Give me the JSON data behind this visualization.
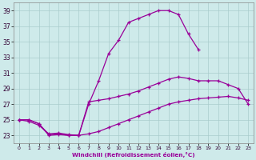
{
  "xlabel": "Windchill (Refroidissement éolien,°C)",
  "bg_color": "#ceeaea",
  "line_color": "#990099",
  "xlim": [
    -0.5,
    23.5
  ],
  "ylim": [
    22.0,
    40.0
  ],
  "xticks": [
    0,
    1,
    2,
    3,
    4,
    5,
    6,
    7,
    8,
    9,
    10,
    11,
    12,
    13,
    14,
    15,
    16,
    17,
    18,
    19,
    20,
    21,
    22,
    23
  ],
  "yticks": [
    23,
    25,
    27,
    29,
    31,
    33,
    35,
    37,
    39
  ],
  "line1_x": [
    0,
    1,
    2,
    3,
    4,
    5,
    6,
    7,
    8,
    9,
    10,
    11,
    12,
    13,
    14,
    15,
    16,
    17,
    18
  ],
  "line1_y": [
    25.0,
    25.0,
    24.5,
    23.1,
    23.2,
    23.0,
    23.0,
    27.0,
    30.0,
    33.5,
    35.2,
    37.5,
    38.0,
    38.5,
    39.0,
    39.0,
    38.5,
    36.0,
    34.0
  ],
  "line2_x": [
    0,
    1,
    2,
    3,
    4,
    5,
    6,
    7,
    8,
    9,
    10,
    11,
    12,
    13,
    14,
    15,
    16,
    17,
    18,
    19,
    20,
    21,
    22,
    23
  ],
  "line2_y": [
    25.0,
    24.8,
    24.3,
    23.2,
    23.3,
    23.1,
    23.0,
    27.3,
    27.5,
    27.7,
    28.0,
    28.3,
    28.7,
    29.2,
    29.7,
    30.2,
    30.5,
    30.3,
    30.0,
    30.0,
    30.0,
    29.5,
    29.0,
    27.0
  ],
  "line3_x": [
    0,
    1,
    2,
    3,
    4,
    5,
    6,
    7,
    8,
    9,
    10,
    11,
    12,
    13,
    14,
    15,
    16,
    17,
    18,
    19,
    20,
    21,
    22,
    23
  ],
  "line3_y": [
    25.0,
    25.0,
    24.5,
    23.0,
    23.1,
    23.0,
    23.0,
    23.2,
    23.5,
    24.0,
    24.5,
    25.0,
    25.5,
    26.0,
    26.5,
    27.0,
    27.3,
    27.5,
    27.7,
    27.8,
    27.9,
    28.0,
    27.8,
    27.5
  ]
}
